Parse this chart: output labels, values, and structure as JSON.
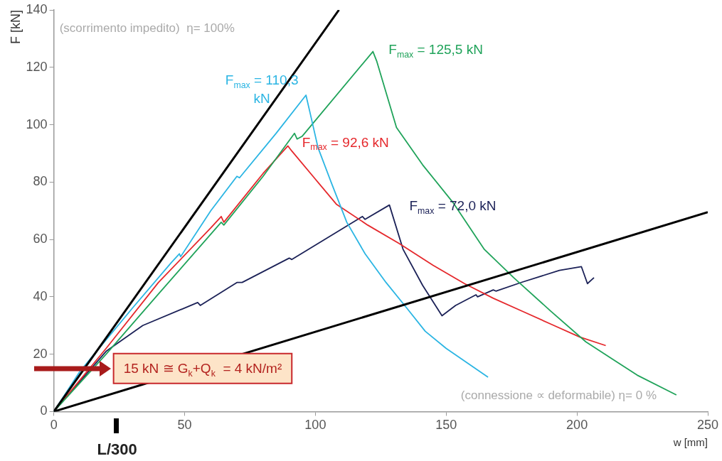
{
  "chart_data": {
    "type": "line",
    "xlabel": "w [mm]",
    "ylabel": "F [kN]",
    "xlim": [
      0,
      250
    ],
    "xticks": [
      0,
      50,
      100,
      150,
      200,
      250
    ],
    "ylim": [
      0,
      140
    ],
    "yticks": [
      0,
      20,
      40,
      60,
      80,
      100,
      120,
      140
    ],
    "grid": false,
    "legend": false,
    "marker": "none",
    "line_style": "solid",
    "series": [
      {
        "color": "#000000",
        "x": [
          0,
          109
        ],
        "values": [
          0,
          140
        ]
      },
      {
        "color": "#000000",
        "x": [
          0,
          250
        ],
        "values": [
          0,
          69.5
        ]
      },
      {
        "color": "#2bb5e3",
        "x": [
          0,
          10,
          20,
          30,
          45,
          48,
          48.5,
          60,
          70,
          71,
          85,
          96.4,
          98,
          101,
          106,
          112,
          119,
          127,
          135,
          142,
          150,
          158,
          166
        ],
        "values": [
          0,
          14,
          25,
          36,
          52,
          55,
          54,
          70,
          82,
          81.5,
          97,
          110.3,
          104,
          92,
          80,
          66,
          55,
          45,
          36,
          28,
          22,
          17,
          12
        ],
        "value_labels": [
          null,
          null,
          null,
          null,
          null,
          null,
          null,
          null,
          null,
          null,
          null,
          "F$_{max}$ = 110,3 kN",
          null,
          null,
          null,
          null,
          null,
          null,
          null,
          null,
          null,
          null,
          null
        ]
      },
      {
        "color": "#20a35a",
        "x": [
          0,
          20,
          40,
          64,
          65,
          80,
          92,
          93,
          95,
          122,
          123.5,
          131,
          141,
          152.5,
          164.6,
          175.8,
          190,
          203.4,
          223,
          238
        ],
        "values": [
          0,
          20,
          41,
          66,
          65,
          82,
          97,
          95,
          96,
          125.5,
          122,
          99,
          86,
          73,
          56.5,
          46.7,
          35,
          24.3,
          12.7,
          5.8
        ],
        "value_labels": [
          null,
          null,
          null,
          null,
          null,
          null,
          null,
          null,
          null,
          "F$_{max}$ = 125,5 kN",
          null,
          null,
          null,
          null,
          null,
          null,
          null,
          null,
          null,
          null
        ]
      },
      {
        "color": "#e5282c",
        "x": [
          0,
          20,
          40,
          60,
          64,
          65,
          80,
          89.5,
          91,
          100,
          108,
          120,
          132,
          145,
          157,
          168,
          179,
          190,
          201,
          211
        ],
        "values": [
          0,
          22,
          45,
          64,
          68,
          66,
          83,
          92.6,
          90.8,
          81,
          72.3,
          65,
          58.6,
          51,
          44.6,
          39.5,
          35,
          30.5,
          26,
          23
        ],
        "value_labels": [
          null,
          null,
          null,
          null,
          null,
          null,
          null,
          "F$_{max}$ = 92,6 kN",
          null,
          null,
          null,
          null,
          null,
          null,
          null,
          null,
          null,
          null,
          null,
          null
        ]
      },
      {
        "color": "#1b2157",
        "x": [
          0,
          20,
          34,
          55,
          56,
          70,
          72,
          90,
          91,
          118,
          119,
          128.3,
          133.5,
          141,
          148.4,
          153.6,
          161.4,
          162,
          168,
          169,
          179,
          193.3,
          201.7,
          204,
          206.5
        ],
        "values": [
          0,
          21,
          30,
          38,
          37,
          45,
          45,
          53.5,
          53,
          68,
          67,
          72.0,
          56.6,
          44,
          33.4,
          37,
          40.7,
          40,
          42.4,
          42,
          45.1,
          49.2,
          50.5,
          44.6,
          46.7
        ],
        "value_labels": [
          null,
          null,
          null,
          null,
          null,
          null,
          null,
          null,
          null,
          null,
          null,
          "F$_{max}$ = 72,0 kN",
          null,
          null,
          null,
          null,
          null,
          null,
          null,
          null,
          null,
          null,
          null,
          null,
          null
        ]
      }
    ],
    "annotations": [
      "(scorrimento impedito)  η= 100%",
      "(connessione ∝ deformabile) η= 0 %",
      {
        "text": "15 kN ≅ G$_{k}$+Q$_{k}$  = 4 kN/m²",
        "y": 15
      },
      "L/300"
    ]
  }
}
